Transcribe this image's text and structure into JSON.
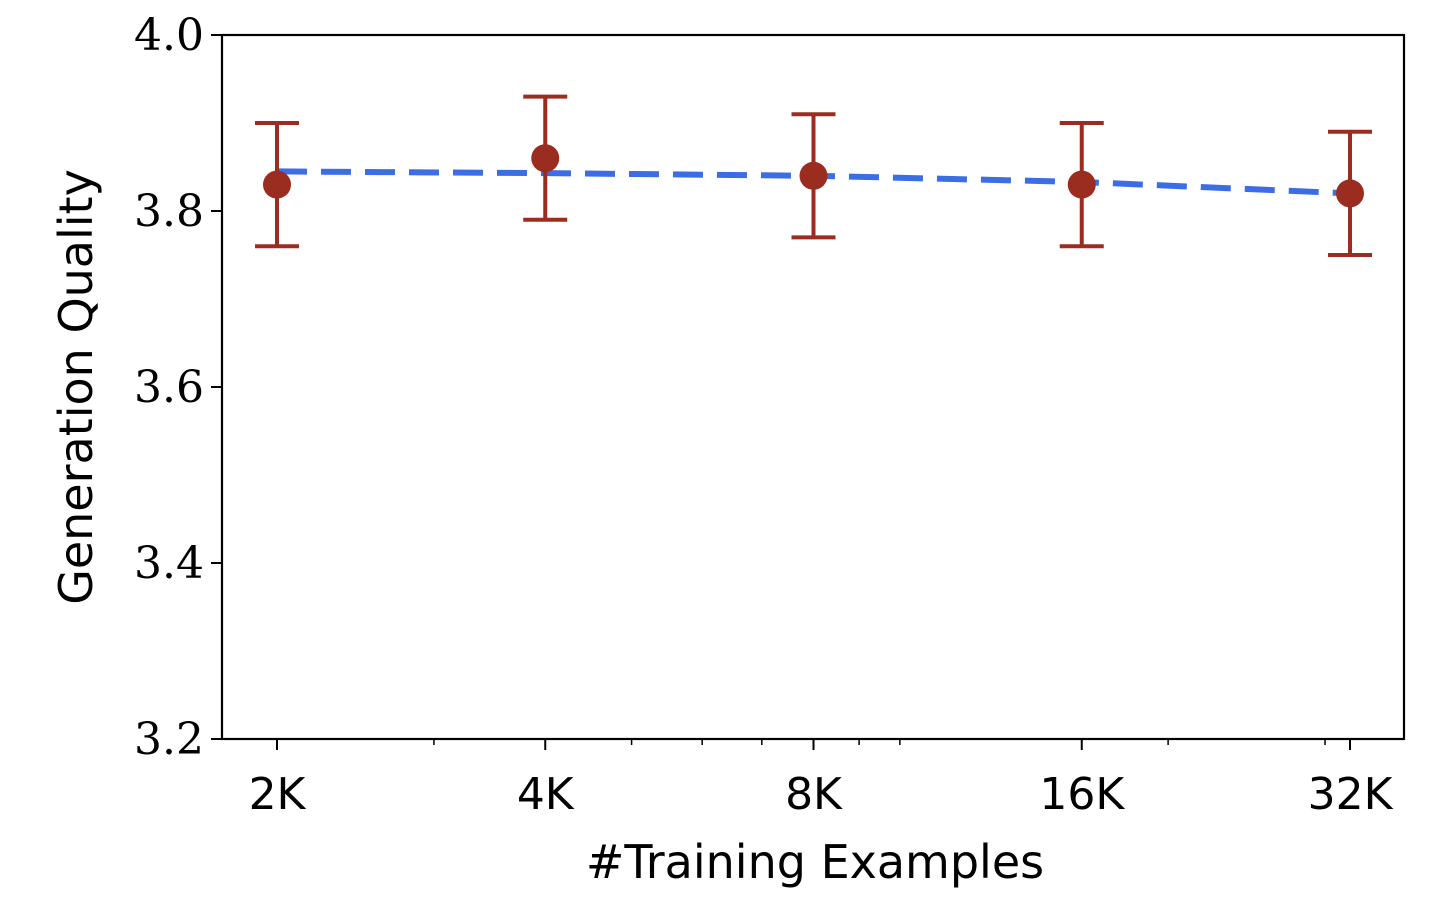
{
  "chart_data": {
    "type": "line",
    "title": "",
    "xlabel": "#Training Examples",
    "ylabel": "Generation Quality",
    "x_scale": "log2",
    "categories": [
      "2K",
      "4K",
      "8K",
      "16K",
      "32K"
    ],
    "x": [
      2000,
      4000,
      8000,
      16000,
      32000
    ],
    "ylim": [
      3.2,
      4.0
    ],
    "yticks": [
      "3.2",
      "3.4",
      "3.6",
      "3.8",
      "4.0"
    ],
    "grid": false,
    "legend": "none",
    "series": [
      {
        "kind": "errorbar",
        "color": "#9b2d20",
        "values": [
          3.83,
          3.86,
          3.84,
          3.83,
          3.82
        ],
        "err_low": [
          3.76,
          3.79,
          3.77,
          3.76,
          3.75
        ],
        "err_high": [
          3.9,
          3.93,
          3.91,
          3.9,
          3.89
        ]
      },
      {
        "kind": "trend",
        "style": "dashed",
        "color": "#3b6ee6",
        "values": [
          3.845,
          3.843,
          3.84,
          3.833,
          3.82
        ]
      }
    ]
  }
}
